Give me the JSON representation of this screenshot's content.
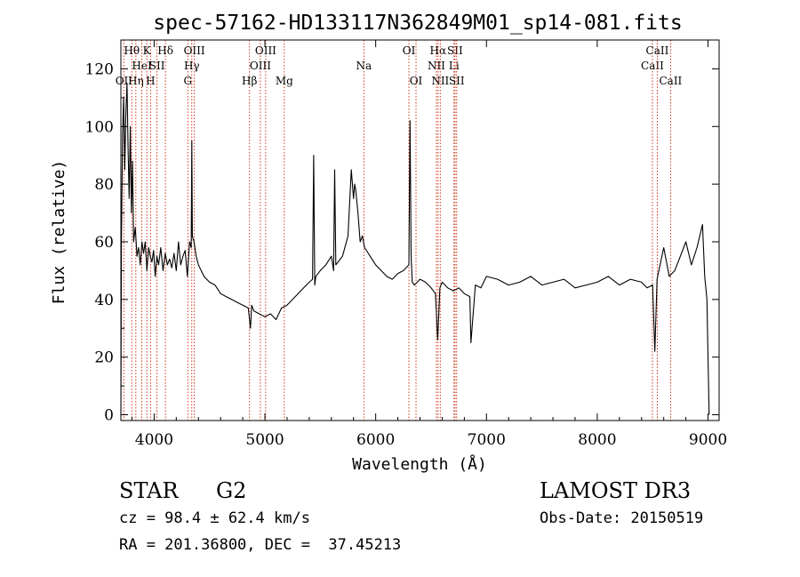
{
  "chart_data": {
    "type": "line",
    "title": "spec-57162-HD133117N362849M01_sp14-081.fits",
    "xlabel": "Wavelength (Å)",
    "ylabel": "Flux (relative)",
    "xlim": [
      3700,
      9100
    ],
    "ylim": [
      -2,
      130
    ],
    "xticks": [
      4000,
      5000,
      6000,
      7000,
      8000,
      9000
    ],
    "yticks": [
      0,
      20,
      40,
      60,
      80,
      100,
      120
    ],
    "line_color": "#000000",
    "marker_color": "#cc2200",
    "grid": false,
    "series": [
      {
        "x": [
          3700,
          3705,
          3715,
          3725,
          3735,
          3745,
          3755,
          3765,
          3775,
          3785,
          3795,
          3805,
          3815,
          3830,
          3845,
          3860,
          3875,
          3890,
          3905,
          3920,
          3935,
          3950,
          3965,
          3980,
          3995,
          4010,
          4025,
          4040,
          4060,
          4080,
          4100,
          4120,
          4140,
          4160,
          4180,
          4200,
          4220,
          4240,
          4260,
          4280,
          4300,
          4320,
          4335,
          4340,
          4345,
          4360,
          4380,
          4400,
          4450,
          4500,
          4550,
          4600,
          4650,
          4700,
          4750,
          4800,
          4850,
          4870,
          4880,
          4900,
          4950,
          5000,
          5050,
          5100,
          5150,
          5200,
          5250,
          5300,
          5350,
          5400,
          5430,
          5440,
          5450,
          5460,
          5500,
          5550,
          5600,
          5620,
          5630,
          5640,
          5660,
          5700,
          5750,
          5780,
          5800,
          5810,
          5820,
          5840,
          5860,
          5880,
          5900,
          5950,
          6000,
          6050,
          6100,
          6150,
          6200,
          6250,
          6300,
          6310,
          6320,
          6330,
          6350,
          6400,
          6450,
          6500,
          6540,
          6560,
          6580,
          6600,
          6650,
          6700,
          6750,
          6800,
          6850,
          6860,
          6900,
          6950,
          7000,
          7100,
          7200,
          7300,
          7400,
          7500,
          7600,
          7700,
          7800,
          7900,
          8000,
          8100,
          8200,
          8300,
          8400,
          8450,
          8500,
          8520,
          8540,
          8600,
          8650,
          8700,
          8750,
          8800,
          8850,
          8900,
          8950,
          8970,
          8990,
          9000,
          9010
        ],
        "y": [
          0,
          60,
          98,
          110,
          85,
          105,
          115,
          92,
          75,
          100,
          70,
          88,
          60,
          65,
          55,
          58,
          52,
          60,
          56,
          60,
          50,
          58,
          55,
          53,
          57,
          48,
          55,
          52,
          58,
          50,
          56,
          52,
          54,
          51,
          56,
          50,
          60,
          52,
          55,
          57,
          48,
          60,
          58,
          95,
          62,
          60,
          55,
          52,
          48,
          46,
          45,
          42,
          41,
          40,
          39,
          38,
          37,
          30,
          38,
          36,
          35,
          34,
          35,
          33,
          37,
          38,
          40,
          42,
          44,
          46,
          47,
          90,
          45,
          48,
          50,
          52,
          55,
          50,
          85,
          52,
          53,
          55,
          62,
          85,
          75,
          80,
          78,
          70,
          60,
          62,
          58,
          55,
          52,
          50,
          48,
          47,
          49,
          50,
          52,
          102,
          55,
          46,
          45,
          47,
          46,
          44,
          42,
          26,
          44,
          46,
          44,
          43,
          44,
          42,
          41,
          25,
          45,
          44,
          48,
          47,
          45,
          46,
          48,
          45,
          46,
          47,
          44,
          45,
          46,
          48,
          45,
          47,
          46,
          44,
          45,
          22,
          47,
          58,
          48,
          50,
          55,
          60,
          52,
          58,
          66,
          48,
          40,
          20,
          0
        ]
      }
    ],
    "line_markers": [
      {
        "w": 3727,
        "top": "",
        "mid": "",
        "low": "OII"
      },
      {
        "w": 3798,
        "top": "Hθ",
        "mid": "",
        "low": ""
      },
      {
        "w": 3835,
        "top": "",
        "mid": "",
        "low": "Hη"
      },
      {
        "w": 3889,
        "top": "",
        "mid": "HeI",
        "low": ""
      },
      {
        "w": 3934,
        "top": "K",
        "mid": "",
        "low": ""
      },
      {
        "w": 3968,
        "top": "",
        "mid": "",
        "low": "H"
      },
      {
        "w": 4026,
        "top": "",
        "mid": "SII",
        "low": ""
      },
      {
        "w": 4102,
        "top": "Hδ",
        "mid": "",
        "low": ""
      },
      {
        "w": 4304,
        "top": "",
        "mid": "",
        "low": "G"
      },
      {
        "w": 4340,
        "top": "",
        "mid": "Hγ",
        "low": ""
      },
      {
        "w": 4363,
        "top": "OIII",
        "mid": "",
        "low": ""
      },
      {
        "w": 4861,
        "top": "",
        "mid": "",
        "low": "Hβ"
      },
      {
        "w": 4959,
        "top": "",
        "mid": "OIII",
        "low": ""
      },
      {
        "w": 5007,
        "top": "OIII",
        "mid": "",
        "low": ""
      },
      {
        "w": 5175,
        "top": "",
        "mid": "",
        "low": "Mg"
      },
      {
        "w": 5893,
        "top": "",
        "mid": "Na",
        "low": ""
      },
      {
        "w": 6300,
        "top": "OI",
        "mid": "",
        "low": ""
      },
      {
        "w": 6364,
        "top": "",
        "mid": "",
        "low": "OI"
      },
      {
        "w": 6548,
        "top": "",
        "mid": "NII",
        "low": ""
      },
      {
        "w": 6563,
        "top": "Hα",
        "mid": "",
        "low": ""
      },
      {
        "w": 6583,
        "top": "",
        "mid": "",
        "low": "NII"
      },
      {
        "w": 6707,
        "top": "",
        "mid": "Li",
        "low": ""
      },
      {
        "w": 6716,
        "top": "SII",
        "mid": "",
        "low": ""
      },
      {
        "w": 6731,
        "top": "",
        "mid": "",
        "low": "SII"
      },
      {
        "w": 8498,
        "top": "",
        "mid": "CaII",
        "low": ""
      },
      {
        "w": 8542,
        "top": "CaII",
        "mid": "",
        "low": ""
      },
      {
        "w": 8662,
        "top": "",
        "mid": "",
        "low": "CaII"
      }
    ]
  },
  "info": {
    "object_class": "STAR",
    "subclass": "G2",
    "survey": "LAMOST DR3",
    "redshift": "cz = 98.4 ± 62.4 km/s",
    "obs_date": "Obs-Date: 20150519",
    "coords": "RA = 201.36800, DEC =  37.45213"
  }
}
